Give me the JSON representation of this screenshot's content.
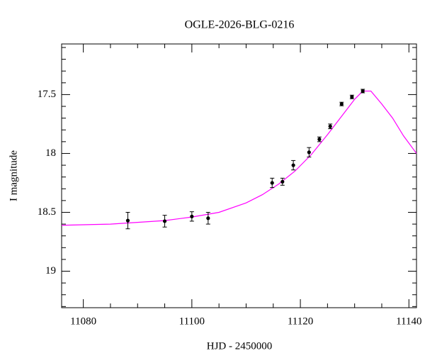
{
  "chart_data": {
    "type": "lightcurve",
    "title": "OGLE-2026-BLG-0216",
    "x_label": "HJD - 2450000",
    "y_label": "I magnitude",
    "xlim": [
      11076,
      11141.4
    ],
    "ylim": [
      19.31,
      17.07
    ],
    "xticks": [
      11080,
      11100,
      11120,
      11140
    ],
    "yticks": [
      17.5,
      18,
      18.5,
      19
    ],
    "xminor_ticks": [
      11085,
      11090,
      11095,
      11105,
      11110,
      11115,
      11125,
      11130,
      11135
    ],
    "yminor_ticks": [
      17.1,
      17.2,
      17.3,
      17.4,
      17.6,
      17.7,
      17.8,
      17.9,
      18.1,
      18.2,
      18.3,
      18.4,
      18.6,
      18.7,
      18.8,
      18.9,
      19.1,
      19.2,
      19.3
    ],
    "model": {
      "color": "#ff00ff",
      "x": [
        11076,
        11085,
        11095,
        11100,
        11105,
        11110,
        11113,
        11116,
        11119,
        11122,
        11125,
        11128,
        11130,
        11131.5,
        11133,
        11135,
        11137,
        11139,
        11141.4
      ],
      "values": [
        18.61,
        18.6,
        18.57,
        18.54,
        18.5,
        18.42,
        18.35,
        18.26,
        18.15,
        18.01,
        17.84,
        17.66,
        17.54,
        17.47,
        17.47,
        17.58,
        17.7,
        17.85,
        18.0
      ]
    },
    "points": {
      "color": "#000000",
      "x": [
        11088.2,
        11095.0,
        11100.0,
        11103.0,
        11114.8,
        11116.7,
        11118.7,
        11121.6,
        11123.5,
        11125.5,
        11127.6,
        11129.5,
        11131.5
      ],
      "values": [
        18.57,
        18.575,
        18.535,
        18.55,
        18.25,
        18.24,
        18.1,
        17.99,
        17.88,
        17.77,
        17.58,
        17.52,
        17.47
      ],
      "errors": [
        0.07,
        0.05,
        0.04,
        0.05,
        0.04,
        0.03,
        0.04,
        0.04,
        0.02,
        0.02,
        0.015,
        0.015,
        0.015
      ]
    }
  }
}
